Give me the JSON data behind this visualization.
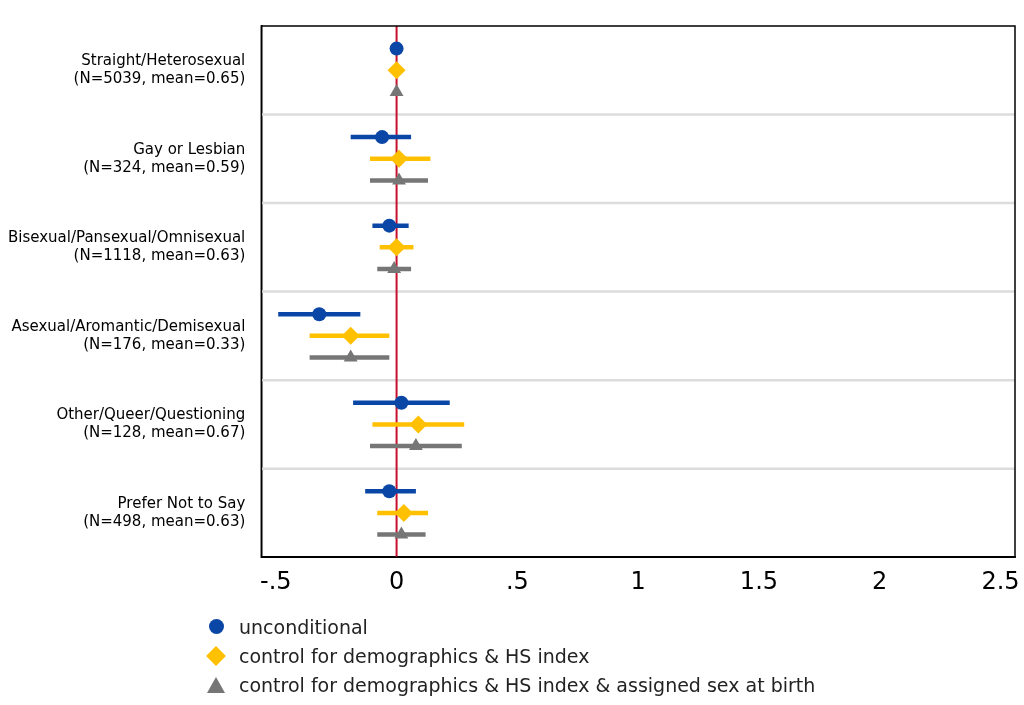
{
  "chart_data": {
    "type": "scatter",
    "orientation": "horizontal",
    "categories": [
      "Straight/Heterosexual\n(N=5039, mean=0.65)",
      "Gay or Lesbian\n(N=324, mean=0.59)",
      "Bisexual/Pansexual/Omnisexual\n(N=1118, mean=0.63)",
      "Asexual/Aromantic/Demisexual\n(N=176, mean=0.33)",
      "Other/Queer/Questioning\n(N=128, mean=0.67)",
      "Prefer Not to Say\n(N=498, mean=0.63)"
    ],
    "series": [
      {
        "name": "unconditional",
        "color": "#0a46a5",
        "marker": "circle",
        "values": [
          0,
          -0.06,
          -0.03,
          -0.32,
          0.02,
          -0.03
        ],
        "errors": [
          null,
          [
            -0.19,
            0.06
          ],
          [
            -0.1,
            0.05
          ],
          [
            -0.49,
            -0.15
          ],
          [
            -0.18,
            0.22
          ],
          [
            -0.13,
            0.08
          ]
        ]
      },
      {
        "name": "control for demographics & HS index",
        "color": "#ffc000",
        "marker": "diamond",
        "values": [
          0,
          0.01,
          0,
          -0.19,
          0.09,
          0.03
        ],
        "errors": [
          null,
          [
            -0.11,
            0.14
          ],
          [
            -0.07,
            0.07
          ],
          [
            -0.36,
            -0.03
          ],
          [
            -0.1,
            0.28
          ],
          [
            -0.08,
            0.13
          ]
        ]
      },
      {
        "name": "control for demographics & HS index & assigned sex at birth",
        "color": "#767676",
        "marker": "triangle",
        "values": [
          0,
          0.01,
          -0.01,
          -0.19,
          0.08,
          0.02
        ],
        "errors": [
          null,
          [
            -0.11,
            0.13
          ],
          [
            -0.08,
            0.06
          ],
          [
            -0.36,
            -0.03
          ],
          [
            -0.11,
            0.27
          ],
          [
            -0.08,
            0.12
          ]
        ]
      }
    ],
    "xlim": [
      -0.56,
      2.56
    ],
    "xticks": [
      {
        "value": -0.5,
        "label": "-.5"
      },
      0,
      {
        "value": 0.5,
        "label": ".5"
      },
      1,
      1.5,
      2,
      2.5
    ],
    "ref_lines": [
      {
        "axis": "x",
        "value": 0,
        "color": "#c8102e"
      }
    ],
    "grid": "y",
    "legend": "bottom"
  }
}
